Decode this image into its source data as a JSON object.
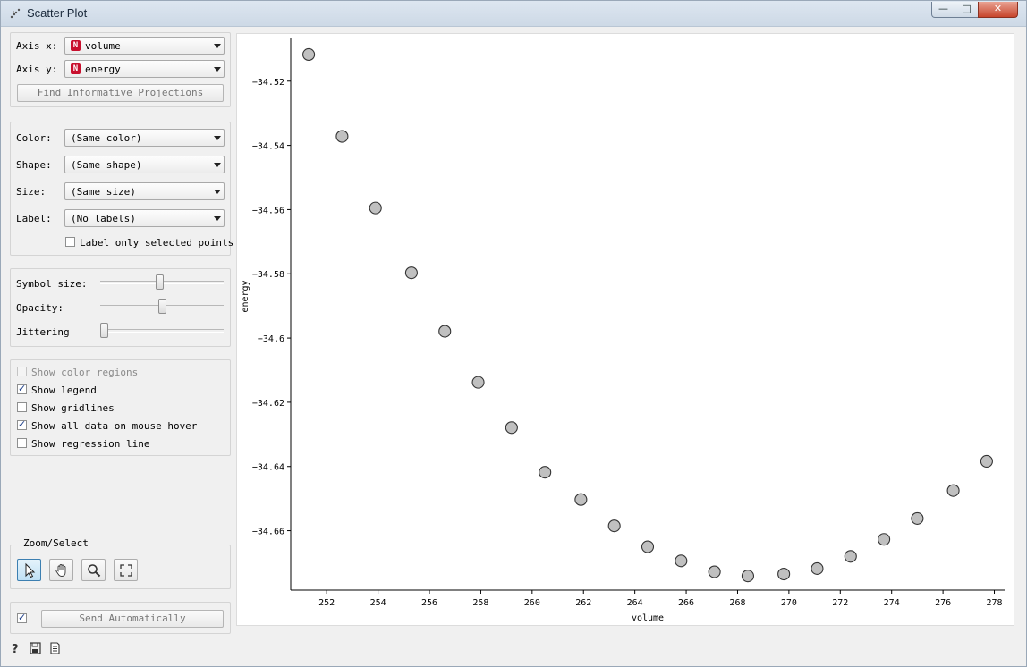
{
  "window": {
    "title": "Scatter Plot"
  },
  "axis_panel": {
    "x_label": "Axis x:",
    "x_value": "volume",
    "x_type_tag": "N",
    "y_label": "Axis y:",
    "y_value": "energy",
    "y_type_tag": "N",
    "find_button": "Find Informative Projections"
  },
  "attr_panel": {
    "color_label": "Color:",
    "color_value": "(Same color)",
    "shape_label": "Shape:",
    "shape_value": "(Same shape)",
    "size_label": "Size:",
    "size_value": "(Same size)",
    "label_label": "Label:",
    "label_value": "(No labels)",
    "label_only_selected": "Label only selected points"
  },
  "sliders": {
    "symbol_size_label": "Symbol size:",
    "symbol_size": 0.48,
    "opacity_label": "Opacity:",
    "opacity": 0.5,
    "jittering_label": "Jittering",
    "jittering": 0.0
  },
  "options": [
    {
      "label": "Show color regions",
      "checked": false,
      "disabled": true
    },
    {
      "label": "Show legend",
      "checked": true,
      "disabled": false
    },
    {
      "label": "Show gridlines",
      "checked": false,
      "disabled": false
    },
    {
      "label": "Show all data on mouse hover",
      "checked": true,
      "disabled": false
    },
    {
      "label": "Show regression line",
      "checked": false,
      "disabled": false
    }
  ],
  "zoom_select": {
    "label": "Zoom/Select",
    "tools": [
      "pointer-icon",
      "hand-pan-icon",
      "magnifier-icon",
      "zoom-reset-icon"
    ]
  },
  "send": {
    "checked": true,
    "button": "Send Automatically"
  },
  "chart_data": {
    "type": "scatter",
    "title": "",
    "xlabel": "volume",
    "ylabel": "energy",
    "xlim": [
      250.6,
      278.4
    ],
    "ylim": [
      -34.6785,
      -34.5067
    ],
    "x_ticks": [
      252,
      254,
      256,
      258,
      260,
      262,
      264,
      266,
      268,
      270,
      272,
      274,
      276,
      278
    ],
    "x_tick_labels": [
      "252",
      "254",
      "256",
      "258",
      "260",
      "262",
      "264",
      "266",
      "268",
      "270",
      "272",
      "274",
      "276",
      "278"
    ],
    "y_ticks": [
      -34.52,
      -34.54,
      -34.56,
      -34.58,
      -34.6,
      -34.62,
      -34.64,
      -34.66
    ],
    "y_tick_labels": [
      "−34.52",
      "−34.54",
      "−34.56",
      "−34.58",
      "−34.6",
      "−34.62",
      "−34.64",
      "−34.66"
    ],
    "grid": false,
    "points_color": "#c0c0c0",
    "x": [
      251.3,
      252.6,
      253.9,
      255.3,
      256.6,
      257.9,
      259.2,
      260.5,
      261.9,
      263.2,
      264.5,
      265.8,
      267.1,
      268.4,
      269.8,
      271.1,
      272.4,
      273.7,
      275.0,
      276.4,
      277.7
    ],
    "y": [
      -34.5117,
      -34.5372,
      -34.5595,
      -34.5797,
      -34.5979,
      -34.6138,
      -34.6279,
      -34.6418,
      -34.6503,
      -34.6585,
      -34.665,
      -34.6694,
      -34.6728,
      -34.6741,
      -34.6735,
      -34.6718,
      -34.668,
      -34.6627,
      -34.6562,
      -34.6475,
      -34.6384
    ]
  }
}
